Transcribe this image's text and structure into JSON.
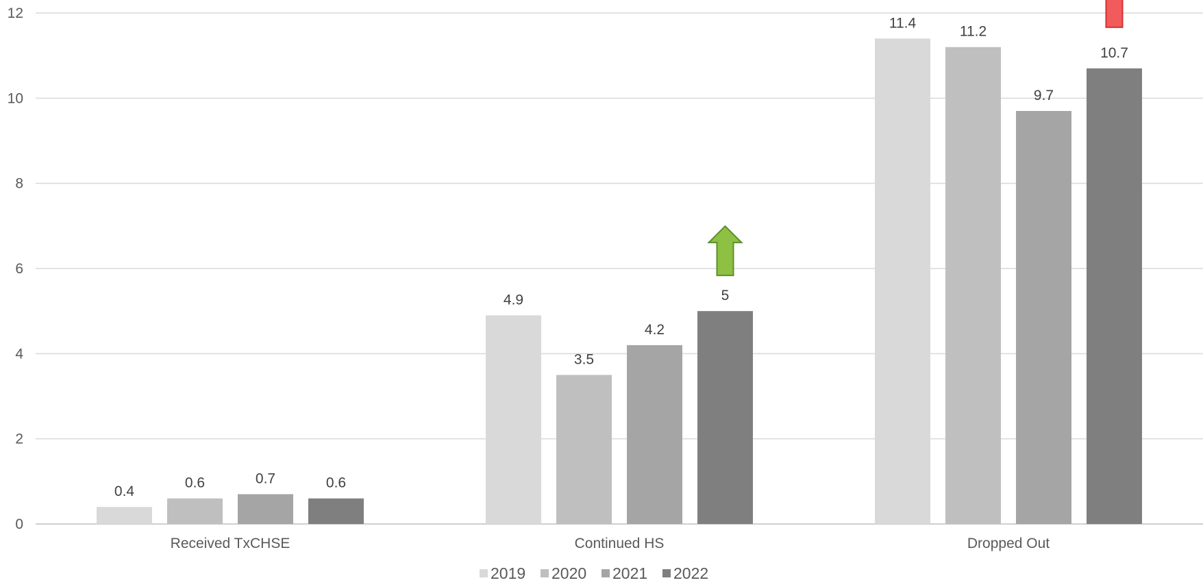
{
  "chart_data": {
    "type": "bar",
    "categories": [
      "Received TxCHSE",
      "Continued HS",
      "Dropped Out"
    ],
    "series": [
      {
        "name": "2019",
        "values": [
          0.4,
          4.9,
          11.4
        ],
        "color": "#d9d9d9"
      },
      {
        "name": "2020",
        "values": [
          0.6,
          3.5,
          11.2
        ],
        "color": "#bfbfbf"
      },
      {
        "name": "2021",
        "values": [
          0.7,
          4.2,
          9.7
        ],
        "color": "#a5a5a5"
      },
      {
        "name": "2022",
        "values": [
          0.6,
          5,
          10.7
        ],
        "color": "#7f7f7f"
      }
    ],
    "ylim": [
      0,
      12
    ],
    "yticks": [
      0,
      2,
      4,
      6,
      8,
      10,
      12
    ],
    "grid": true,
    "legend": "bottom",
    "annotations": [
      {
        "type": "arrow-up",
        "category": "Continued HS",
        "series": "2022",
        "color": "#8dc043"
      },
      {
        "type": "arrow-down",
        "category": "Dropped Out",
        "series": "2022",
        "color": "#f25b5b"
      }
    ]
  }
}
